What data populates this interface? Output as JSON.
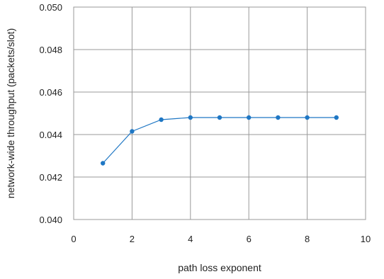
{
  "chart_data": {
    "type": "line",
    "title": "",
    "xlabel": "path loss exponent",
    "ylabel": "network-wide throughput (packets/slot)",
    "xlim": [
      0,
      10
    ],
    "ylim": [
      0.04,
      0.05
    ],
    "xticks": [
      "0",
      "2",
      "4",
      "6",
      "8",
      "10"
    ],
    "yticks": [
      "0.040",
      "0.042",
      "0.044",
      "0.046",
      "0.048",
      "0.050"
    ],
    "grid": true,
    "legend": "none",
    "series": [
      {
        "color": "#1f77c4",
        "x": [
          1,
          2,
          3,
          4,
          5,
          6,
          7,
          8,
          9
        ],
        "y": [
          0.04265,
          0.04415,
          0.0447,
          0.0448,
          0.0448,
          0.0448,
          0.0448,
          0.0448,
          0.0448
        ]
      }
    ]
  }
}
